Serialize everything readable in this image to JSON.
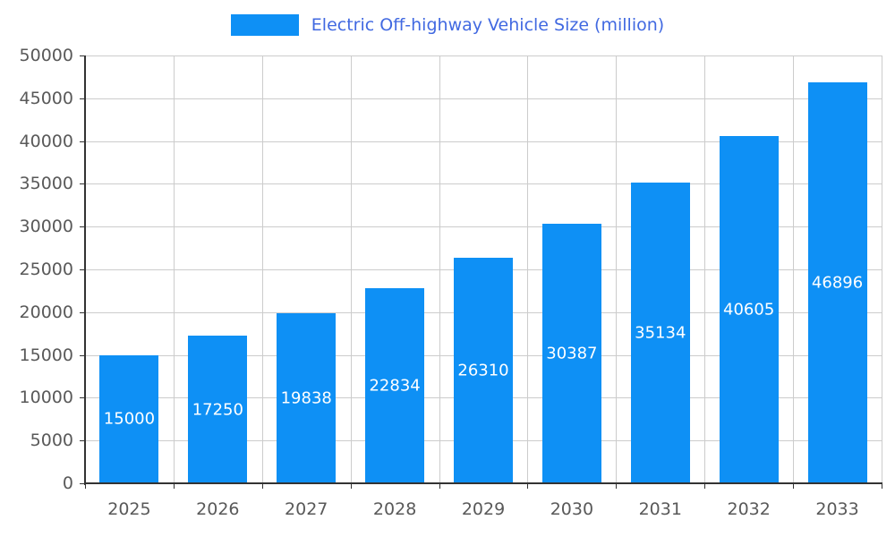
{
  "chart_data": {
    "type": "bar",
    "title": "Electric Off-highway Vehicle Size (million)",
    "categories": [
      "2025",
      "2026",
      "2027",
      "2028",
      "2029",
      "2030",
      "2031",
      "2032",
      "2033"
    ],
    "values": [
      15000,
      17250,
      19838,
      22834,
      26310,
      30387,
      35134,
      40605,
      46896
    ],
    "xlabel": "",
    "ylabel": "",
    "ylim": [
      0,
      50000
    ],
    "ytick_step": 5000,
    "grid": true,
    "legend_position": "top",
    "legend_entries": [
      "Electric Off-highway Vehicle Size (million)"
    ],
    "colors": {
      "bar": "#0e90f5",
      "legend_text": "#4169e1",
      "axis_text": "#595959",
      "gridline": "#cccccc",
      "axis_line": "#333333",
      "value_label": "#ffffff",
      "background": "#ffffff"
    }
  }
}
